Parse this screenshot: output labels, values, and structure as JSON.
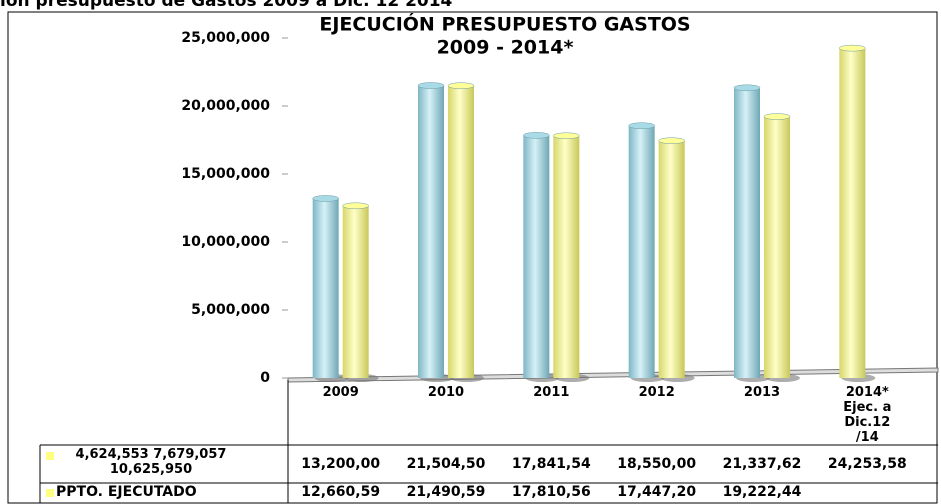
{
  "heading": "ion presupuesto de Gastos 2009 a Dic. 12 2014",
  "chart_data": {
    "type": "bar",
    "title": "EJECUCIÓN PRESUPUESTO GASTOS",
    "subtitle": "2009 - 2014*",
    "categories": [
      "2009",
      "2010",
      "2011",
      "2012",
      "2013",
      "2014* Ejec. a Dic.12 /14"
    ],
    "series": [
      {
        "name": "4,624,553 7,679,057 10,625,950",
        "color": "#a8dbe6",
        "legend_color": "#ffff80",
        "colors": [
          "#a8dbe6",
          "#a8dbe6",
          "#a8dbe6",
          "#a8dbe6",
          "#a8dbe6",
          "#ffff99"
        ],
        "values": [
          13200000,
          21504500,
          17841540,
          18550000,
          21337620,
          24253580
        ],
        "value_labels": [
          "13,200,00",
          "21,504,50",
          "17,841,54",
          "18,550,00",
          "21,337,62",
          "24,253,58"
        ]
      },
      {
        "name": "PPTO. EJECUTADO",
        "color": "#ffff99",
        "legend_color": "#ffff80",
        "values": [
          12660590,
          21490590,
          17810560,
          17447200,
          19222440,
          null
        ],
        "value_labels": [
          "12,660,59",
          "21,490,59",
          "17,810,56",
          "17,447,20",
          "19,222,44",
          null
        ]
      }
    ],
    "ylim": [
      0,
      25000000
    ],
    "yticks": [
      0,
      {
        "value": 5000000,
        "label": "5,000,000"
      },
      {
        "value": 10000000,
        "label": "10,000,000"
      },
      {
        "value": 15000000,
        "label": "15,000,000"
      },
      {
        "value": 20000000,
        "label": "20,000,000"
      },
      {
        "value": 25000000,
        "label": "25,000,000"
      }
    ],
    "grid": false
  }
}
